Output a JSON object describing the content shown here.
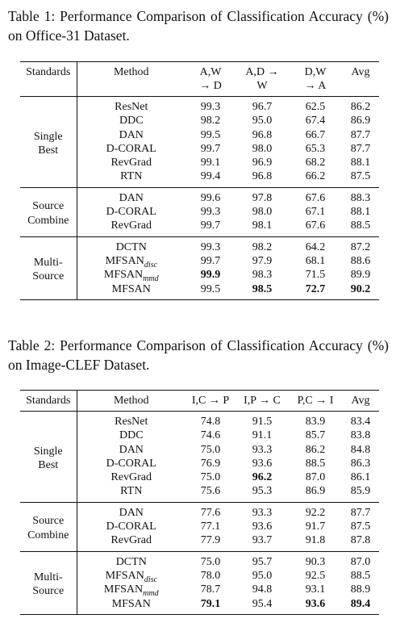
{
  "tables": [
    {
      "caption": "Table 1: Performance Comparison of Classification Accuracy (%) on Office-31 Dataset.",
      "header": [
        "Standards",
        "Method",
        "A,W → D",
        "A,D → W",
        "D,W → A",
        "Avg"
      ],
      "groups": [
        {
          "label": "Single Best",
          "rows": [
            {
              "method": "ResNet",
              "values": [
                "99.3",
                "96.7",
                "62.5",
                "86.2"
              ]
            },
            {
              "method": "DDC",
              "values": [
                "98.2",
                "95.0",
                "67.4",
                "86.9"
              ]
            },
            {
              "method": "DAN",
              "values": [
                "99.5",
                "96.8",
                "66.7",
                "87.7"
              ]
            },
            {
              "method": "D-CORAL",
              "values": [
                "99.7",
                "98.0",
                "65.3",
                "87.7"
              ]
            },
            {
              "method": "RevGrad",
              "values": [
                "99.1",
                "96.9",
                "68.2",
                "88.1"
              ]
            },
            {
              "method": "RTN",
              "values": [
                "99.4",
                "96.8",
                "66.2",
                "87.5"
              ]
            }
          ]
        },
        {
          "label": "Source Combine",
          "rows": [
            {
              "method": "DAN",
              "values": [
                "99.6",
                "97.8",
                "67.6",
                "88.3"
              ]
            },
            {
              "method": "D-CORAL",
              "values": [
                "99.3",
                "98.0",
                "67.1",
                "88.1"
              ]
            },
            {
              "method": "RevGrad",
              "values": [
                "99.7",
                "98.1",
                "67.6",
                "88.5"
              ]
            }
          ]
        },
        {
          "label": "Multi-Source",
          "rows": [
            {
              "method": "DCTN",
              "values": [
                "99.3",
                "98.2",
                "64.2",
                "87.2"
              ]
            },
            {
              "method": "MFSAN",
              "sub": "disc",
              "values": [
                "99.7",
                "97.9",
                "68.1",
                "88.6"
              ]
            },
            {
              "method": "MFSAN",
              "sub": "mmd",
              "values": [
                "99.9",
                "98.3",
                "71.5",
                "89.9"
              ],
              "bold": [
                0
              ]
            },
            {
              "method": "MFSAN",
              "values": [
                "99.5",
                "98.5",
                "72.7",
                "90.2"
              ],
              "bold": [
                1,
                2,
                3
              ]
            }
          ]
        }
      ]
    },
    {
      "caption": "Table 2: Performance Comparison of Classification Accuracy (%) on Image-CLEF Dataset.",
      "header": [
        "Standards",
        "Method",
        "I,C → P",
        "I,P → C",
        "P,C → I",
        "Avg"
      ],
      "groups": [
        {
          "label": "Single Best",
          "rows": [
            {
              "method": "ResNet",
              "values": [
                "74.8",
                "91.5",
                "83.9",
                "83.4"
              ]
            },
            {
              "method": "DDC",
              "values": [
                "74.6",
                "91.1",
                "85.7",
                "83.8"
              ]
            },
            {
              "method": "DAN",
              "values": [
                "75.0",
                "93.3",
                "86.2",
                "84.8"
              ]
            },
            {
              "method": "D-CORAL",
              "values": [
                "76.9",
                "93.6",
                "88.5",
                "86.3"
              ]
            },
            {
              "method": "RevGrad",
              "values": [
                "75.0",
                "96.2",
                "87.0",
                "86.1"
              ],
              "bold": [
                1
              ]
            },
            {
              "method": "RTN",
              "values": [
                "75.6",
                "95.3",
                "86.9",
                "85.9"
              ]
            }
          ]
        },
        {
          "label": "Source Combine",
          "rows": [
            {
              "method": "DAN",
              "values": [
                "77.6",
                "93.3",
                "92.2",
                "87.7"
              ]
            },
            {
              "method": "D-CORAL",
              "values": [
                "77.1",
                "93.6",
                "91.7",
                "87.5"
              ]
            },
            {
              "method": "RevGrad",
              "values": [
                "77.9",
                "93.7",
                "91.8",
                "87.8"
              ]
            }
          ]
        },
        {
          "label": "Multi-Source",
          "rows": [
            {
              "method": "DCTN",
              "values": [
                "75.0",
                "95.7",
                "90.3",
                "87.0"
              ]
            },
            {
              "method": "MFSAN",
              "sub": "disc",
              "values": [
                "78.0",
                "95.0",
                "92.5",
                "88.5"
              ]
            },
            {
              "method": "MFSAN",
              "sub": "mmd",
              "values": [
                "78.7",
                "94.8",
                "93.1",
                "88.9"
              ]
            },
            {
              "method": "MFSAN",
              "values": [
                "79.1",
                "95.4",
                "93.6",
                "89.4"
              ],
              "bold": [
                0,
                2,
                3
              ]
            }
          ]
        }
      ]
    }
  ]
}
